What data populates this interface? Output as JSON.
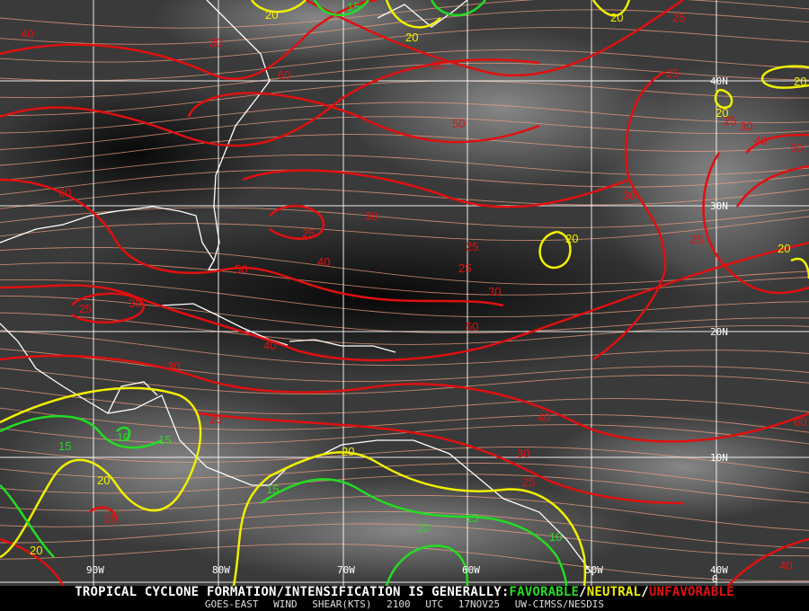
{
  "colors": {
    "favorable": "#22dd22",
    "neutral": "#f0f000",
    "unfavorable": "#e01010",
    "streamline": "#f0a080",
    "grid": "#ffffff",
    "coastline": "#ffffff"
  },
  "grid": {
    "latitudes": [
      "40N",
      "30N",
      "20N",
      "10N",
      "0"
    ],
    "longitudes": [
      "90W",
      "80W",
      "70W",
      "60W",
      "50W",
      "40W"
    ]
  },
  "contour_labels": [
    {
      "value": "40",
      "class": "unfavorable"
    },
    {
      "value": "30",
      "class": "unfavorable"
    },
    {
      "value": "20",
      "class": "neutral"
    },
    {
      "value": "15",
      "class": "favorable"
    },
    {
      "value": "20",
      "class": "neutral"
    },
    {
      "value": "20",
      "class": "neutral"
    },
    {
      "value": "25",
      "class": "unfavorable"
    },
    {
      "value": "30",
      "class": "unfavorable"
    },
    {
      "value": "60",
      "class": "unfavorable"
    },
    {
      "value": "50",
      "class": "unfavorable"
    },
    {
      "value": "25",
      "class": "unfavorable"
    },
    {
      "value": "20",
      "class": "neutral"
    },
    {
      "value": "20",
      "class": "neutral"
    },
    {
      "value": "25",
      "class": "unfavorable"
    },
    {
      "value": "30",
      "class": "unfavorable"
    },
    {
      "value": "40",
      "class": "unfavorable"
    },
    {
      "value": "50",
      "class": "unfavorable"
    },
    {
      "value": "30",
      "class": "unfavorable"
    },
    {
      "value": "60",
      "class": "unfavorable"
    },
    {
      "value": "30",
      "class": "unfavorable"
    },
    {
      "value": "25",
      "class": "unfavorable"
    },
    {
      "value": "20",
      "class": "neutral"
    },
    {
      "value": "25",
      "class": "unfavorable"
    },
    {
      "value": "25",
      "class": "unfavorable"
    },
    {
      "value": "25",
      "class": "unfavorable"
    },
    {
      "value": "20",
      "class": "neutral"
    },
    {
      "value": "50",
      "class": "unfavorable"
    },
    {
      "value": "40",
      "class": "unfavorable"
    },
    {
      "value": "30",
      "class": "unfavorable"
    },
    {
      "value": "30",
      "class": "unfavorable"
    },
    {
      "value": "25",
      "class": "unfavorable"
    },
    {
      "value": "50",
      "class": "unfavorable"
    },
    {
      "value": "40",
      "class": "unfavorable"
    },
    {
      "value": "30",
      "class": "unfavorable"
    },
    {
      "value": "25",
      "class": "unfavorable"
    },
    {
      "value": "40",
      "class": "unfavorable"
    },
    {
      "value": "60",
      "class": "unfavorable"
    },
    {
      "value": "30",
      "class": "unfavorable"
    },
    {
      "value": "25",
      "class": "unfavorable"
    },
    {
      "value": "10",
      "class": "favorable"
    },
    {
      "value": "15",
      "class": "favorable"
    },
    {
      "value": "15",
      "class": "favorable"
    },
    {
      "value": "20",
      "class": "neutral"
    },
    {
      "value": "25",
      "class": "unfavorable"
    },
    {
      "value": "15",
      "class": "favorable"
    },
    {
      "value": "20",
      "class": "neutral"
    },
    {
      "value": "15",
      "class": "favorable"
    },
    {
      "value": "10",
      "class": "favorable"
    },
    {
      "value": "10",
      "class": "favorable"
    },
    {
      "value": "20",
      "class": "neutral"
    },
    {
      "value": "40",
      "class": "unfavorable"
    }
  ],
  "banner": {
    "prefix": "TROPICAL CYCLONE FORMATION/INTENSIFICATION IS GENERALLY:",
    "favorable": "FAVORABLE",
    "sep1": "/",
    "neutral": "NEUTRAL",
    "sep2": "/",
    "unfavorable": "UNFAVORABLE"
  },
  "footer": {
    "product": "GOES-EAST WIND SHEAR(KTS)",
    "time": "2100 UTC",
    "date": "17NOV25",
    "source": "UW-CIMSS/NESDIS"
  }
}
